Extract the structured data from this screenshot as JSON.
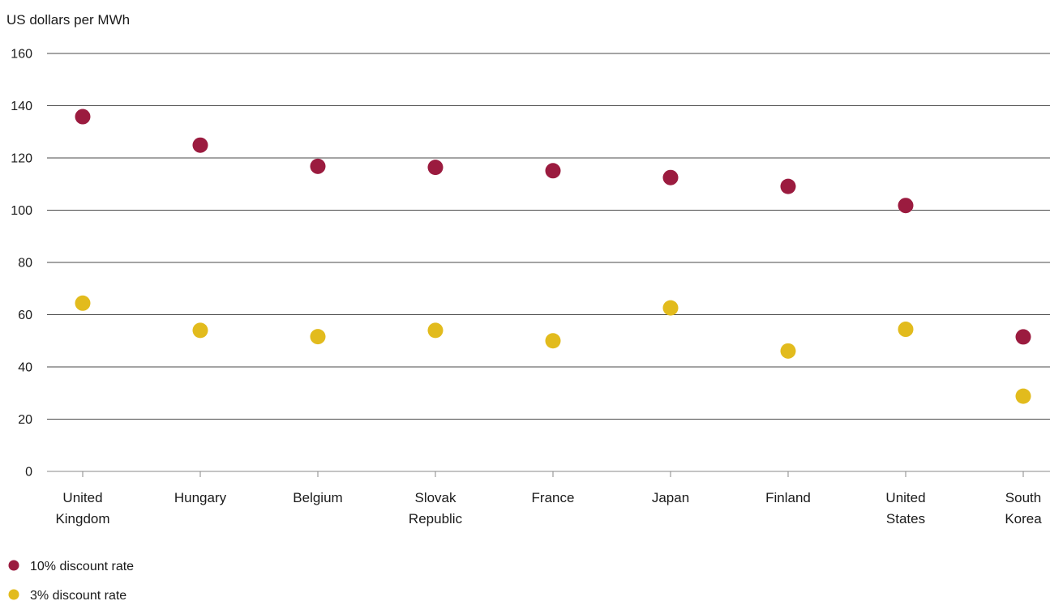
{
  "chart_data": {
    "type": "scatter",
    "ylabel": "US dollars per MWh",
    "ylim": [
      0,
      160
    ],
    "yticks": [
      0,
      20,
      40,
      60,
      80,
      100,
      120,
      140,
      160
    ],
    "categories": [
      [
        "United",
        "Kingdom"
      ],
      [
        "Hungary"
      ],
      [
        "Belgium"
      ],
      [
        "Slovak",
        "Republic"
      ],
      [
        "France"
      ],
      [
        "Japan"
      ],
      [
        "Finland"
      ],
      [
        "United",
        "States"
      ],
      [
        "South",
        "Korea"
      ]
    ],
    "series": [
      {
        "name": "10% discount rate",
        "color": "#9b1b3f",
        "values": [
          135.8,
          124.9,
          116.8,
          116.4,
          115.1,
          112.5,
          109.1,
          101.8,
          51.5
        ]
      },
      {
        "name": "3% discount rate",
        "color": "#e2bb1d",
        "values": [
          64.4,
          54.0,
          51.6,
          54.0,
          50.0,
          62.6,
          46.1,
          54.4,
          28.8
        ]
      }
    ],
    "grid": true,
    "legend_position": "bottom-left"
  }
}
